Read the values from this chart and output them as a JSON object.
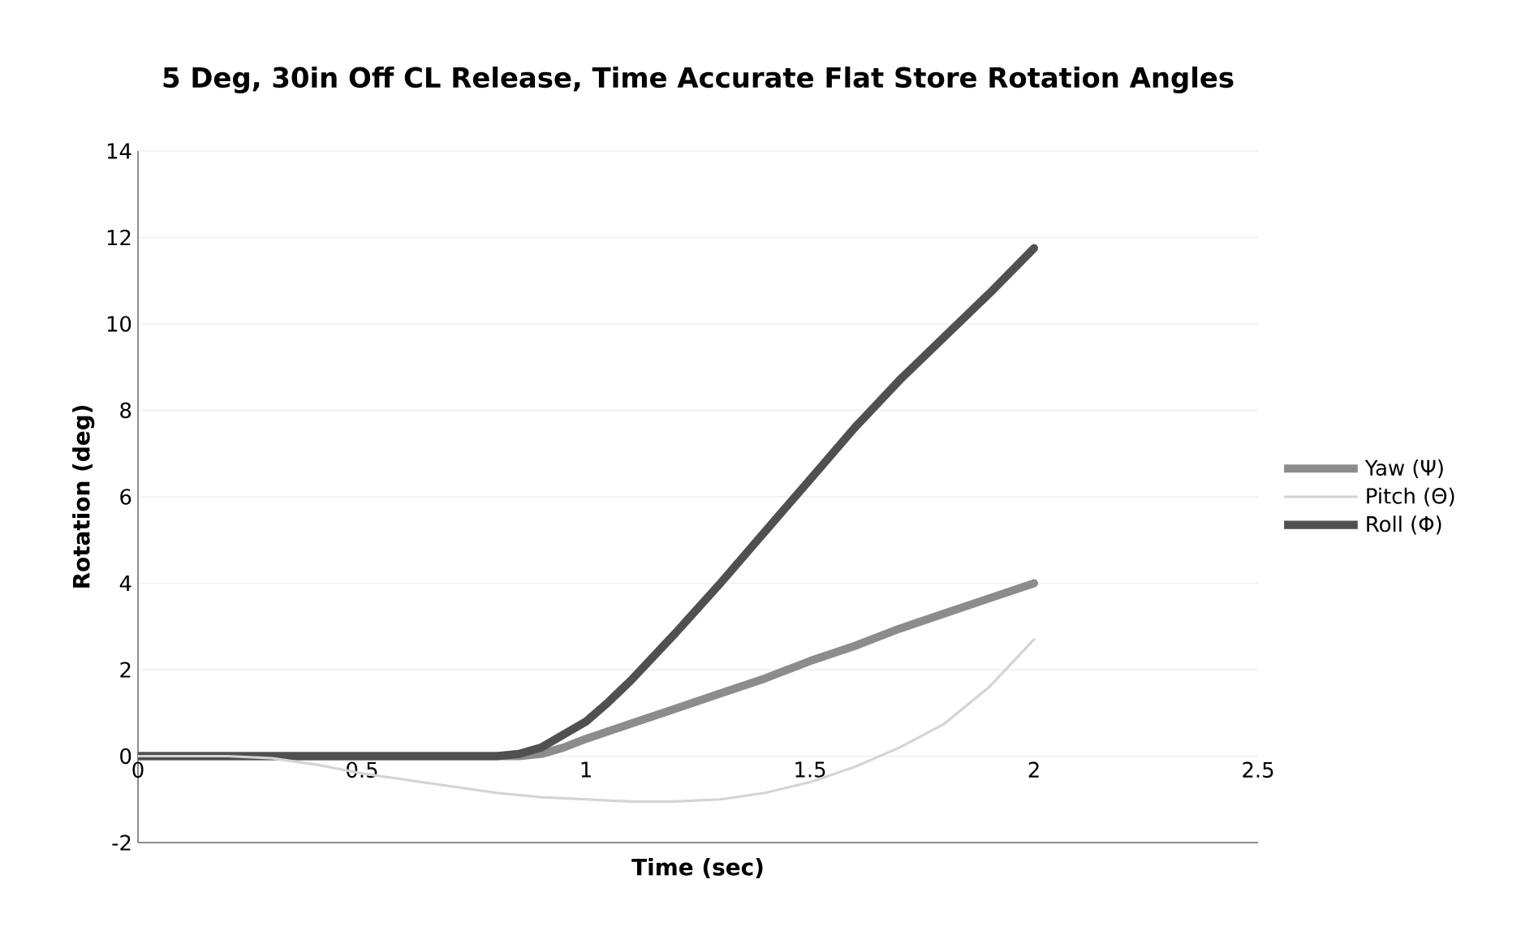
{
  "chart_data": {
    "type": "line",
    "title": "5 Deg, 30in Off CL Release, Time Accurate Flat Store Rotation Angles",
    "xlabel": "Time (sec)",
    "ylabel": "Rotation (deg)",
    "xlim": [
      0,
      2.5
    ],
    "xticks": [
      0,
      0.5,
      1,
      1.5,
      2,
      2.5
    ],
    "ylim": [
      -2,
      14
    ],
    "yticks": [
      -2,
      0,
      2,
      4,
      6,
      8,
      10,
      12,
      14
    ],
    "grid": "y",
    "legend": "right",
    "marker": "none",
    "line_style": "solid",
    "series": [
      {
        "name": "Yaw (Ψ)",
        "color": "#8c8c8c",
        "x": [
          0,
          0.5,
          0.85,
          0.9,
          0.95,
          1.0,
          1.1,
          1.2,
          1.3,
          1.4,
          1.5,
          1.6,
          1.7,
          1.8,
          1.9,
          2.0
        ],
        "values": [
          0,
          0,
          0,
          0.05,
          0.2,
          0.4,
          0.75,
          1.1,
          1.45,
          1.8,
          2.2,
          2.55,
          2.95,
          3.3,
          3.65,
          4.0
        ]
      },
      {
        "name": "Pitch (Θ)",
        "color": "#d4d4d4",
        "x": [
          0,
          0.2,
          0.3,
          0.4,
          0.5,
          0.6,
          0.7,
          0.8,
          0.9,
          1.0,
          1.1,
          1.2,
          1.3,
          1.4,
          1.5,
          1.6,
          1.7,
          1.8,
          1.9,
          2.0
        ],
        "values": [
          0,
          0,
          -0.05,
          -0.2,
          -0.4,
          -0.55,
          -0.7,
          -0.85,
          -0.95,
          -1.0,
          -1.05,
          -1.05,
          -1.0,
          -0.85,
          -0.6,
          -0.25,
          0.2,
          0.75,
          1.6,
          2.7
        ]
      },
      {
        "name": "Roll (Φ)",
        "color": "#505050",
        "x": [
          0,
          0.5,
          0.8,
          0.85,
          0.9,
          0.95,
          1.0,
          1.05,
          1.1,
          1.2,
          1.3,
          1.4,
          1.5,
          1.6,
          1.7,
          1.8,
          1.9,
          2.0
        ],
        "values": [
          0,
          0,
          0,
          0.05,
          0.2,
          0.5,
          0.8,
          1.25,
          1.75,
          2.85,
          4.0,
          5.2,
          6.4,
          7.6,
          8.7,
          9.7,
          10.7,
          11.75
        ]
      }
    ]
  }
}
